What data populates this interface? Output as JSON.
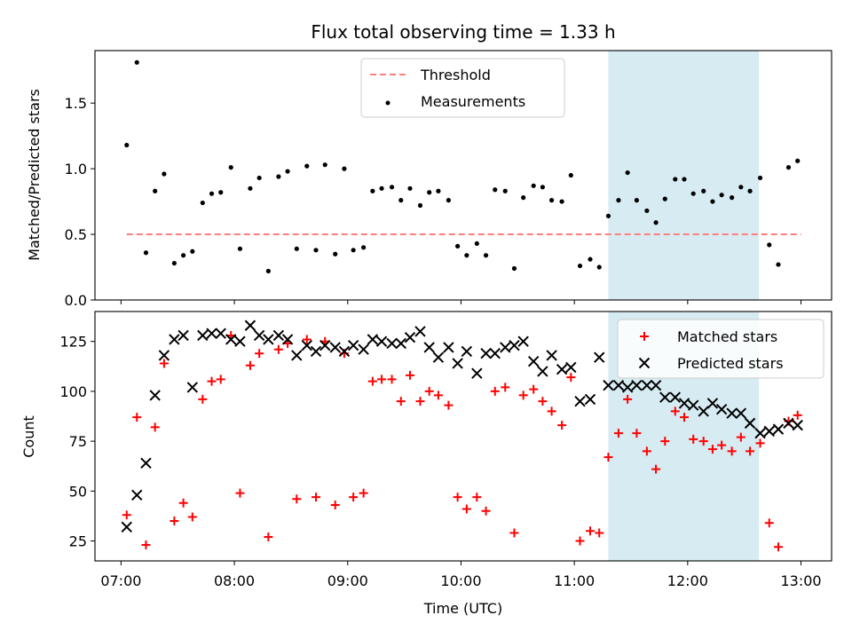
{
  "title": "Flux total observing time = 1.33 h",
  "colors": {
    "threshold": "#ff7f7f",
    "measurements": "#000000",
    "matched": "#ff0000",
    "predicted": "#000000",
    "span": "#add8e6"
  },
  "chart_data": [
    {
      "type": "scatter",
      "panel": "top",
      "ylabel": "Matched/Predicted stars",
      "xlabel": "",
      "xlim": [
        6.77,
        13.27
      ],
      "ylim": [
        0,
        1.9
      ],
      "yticks": [
        0.0,
        0.5,
        1.0,
        1.5
      ],
      "ytick_labels": [
        "0.0",
        "0.5",
        "1.0",
        "1.5"
      ],
      "xticks": [
        7,
        8,
        9,
        10,
        11,
        12,
        13
      ],
      "legend": {
        "placement": "top-center",
        "entries": [
          "Threshold",
          "Measurements"
        ]
      },
      "shaded_span": {
        "x0": 11.3,
        "x1": 12.63
      },
      "threshold": {
        "name": "Threshold",
        "value": 0.5,
        "x0": 7.05,
        "x1": 13.0,
        "style": "dashed"
      },
      "series": [
        {
          "name": "Measurements",
          "marker": "dot",
          "x": [
            7.05,
            7.14,
            7.22,
            7.3,
            7.38,
            7.47,
            7.55,
            7.63,
            7.72,
            7.8,
            7.88,
            7.97,
            8.05,
            8.14,
            8.22,
            8.3,
            8.39,
            8.47,
            8.55,
            8.64,
            8.72,
            8.8,
            8.89,
            8.97,
            9.05,
            9.14,
            9.22,
            9.3,
            9.39,
            9.47,
            9.55,
            9.64,
            9.72,
            9.8,
            9.89,
            9.97,
            10.05,
            10.14,
            10.22,
            10.3,
            10.39,
            10.47,
            10.55,
            10.64,
            10.72,
            10.8,
            10.89,
            10.97,
            11.05,
            11.14,
            11.22,
            11.3,
            11.39,
            11.47,
            11.55,
            11.64,
            11.72,
            11.8,
            11.89,
            11.97,
            12.05,
            12.14,
            12.22,
            12.3,
            12.39,
            12.47,
            12.55,
            12.64,
            12.72,
            12.8,
            12.89,
            12.97
          ],
          "y": [
            1.18,
            1.81,
            0.36,
            0.83,
            0.96,
            0.28,
            0.34,
            0.37,
            0.74,
            0.81,
            0.82,
            1.01,
            0.39,
            0.85,
            0.93,
            0.22,
            0.94,
            0.98,
            0.39,
            1.02,
            0.38,
            1.03,
            0.35,
            1.0,
            0.38,
            0.4,
            0.83,
            0.85,
            0.86,
            0.76,
            0.85,
            0.72,
            0.82,
            0.83,
            0.76,
            0.41,
            0.34,
            0.43,
            0.34,
            0.84,
            0.83,
            0.24,
            0.78,
            0.87,
            0.86,
            0.76,
            0.75,
            0.95,
            0.26,
            0.31,
            0.25,
            0.64,
            0.76,
            0.97,
            0.76,
            0.68,
            0.59,
            0.77,
            0.92,
            0.92,
            0.81,
            0.83,
            0.75,
            0.8,
            0.78,
            0.86,
            0.83,
            0.93,
            0.42,
            0.27,
            1.01,
            1.06
          ]
        }
      ]
    },
    {
      "type": "scatter",
      "panel": "bottom",
      "ylabel": "Count",
      "xlabel": "Time (UTC)",
      "xlim": [
        6.77,
        13.27
      ],
      "ylim": [
        15,
        140
      ],
      "yticks": [
        25,
        50,
        75,
        100,
        125
      ],
      "ytick_labels": [
        "25",
        "50",
        "75",
        "100",
        "125"
      ],
      "xticks": [
        7,
        8,
        9,
        10,
        11,
        12,
        13
      ],
      "xtick_labels": [
        "07:00",
        "08:00",
        "09:00",
        "10:00",
        "11:00",
        "12:00",
        "13:00"
      ],
      "legend": {
        "placement": "top-right",
        "entries": [
          "Matched stars",
          "Predicted stars"
        ]
      },
      "shaded_span": {
        "x0": 11.3,
        "x1": 12.63
      },
      "series": [
        {
          "name": "Matched stars",
          "marker": "plus",
          "x": [
            7.05,
            7.14,
            7.22,
            7.3,
            7.38,
            7.47,
            7.55,
            7.63,
            7.72,
            7.8,
            7.88,
            7.97,
            8.05,
            8.14,
            8.22,
            8.3,
            8.39,
            8.47,
            8.55,
            8.64,
            8.72,
            8.8,
            8.89,
            8.97,
            9.05,
            9.14,
            9.22,
            9.3,
            9.39,
            9.47,
            9.55,
            9.64,
            9.72,
            9.8,
            9.89,
            9.97,
            10.05,
            10.14,
            10.22,
            10.3,
            10.39,
            10.47,
            10.55,
            10.64,
            10.72,
            10.8,
            10.89,
            10.97,
            11.05,
            11.14,
            11.22,
            11.3,
            11.39,
            11.47,
            11.55,
            11.64,
            11.72,
            11.8,
            11.89,
            11.97,
            12.05,
            12.14,
            12.22,
            12.3,
            12.39,
            12.47,
            12.55,
            12.64,
            12.72,
            12.8,
            12.89,
            12.97
          ],
          "y": [
            38,
            87,
            23,
            82,
            114,
            35,
            44,
            37,
            96,
            105,
            106,
            128,
            49,
            113,
            119,
            27,
            121,
            124,
            46,
            126,
            47,
            125,
            43,
            119,
            47,
            49,
            105,
            106,
            106,
            95,
            108,
            95,
            100,
            98,
            93,
            47,
            41,
            47,
            40,
            100,
            102,
            29,
            98,
            101,
            95,
            90,
            83,
            107,
            25,
            30,
            29,
            67,
            79,
            96,
            79,
            70,
            61,
            75,
            90,
            87,
            76,
            75,
            71,
            73,
            70,
            77,
            70,
            74,
            34,
            22,
            85,
            88
          ]
        },
        {
          "name": "Predicted stars",
          "marker": "x",
          "x": [
            7.05,
            7.14,
            7.22,
            7.3,
            7.38,
            7.47,
            7.55,
            7.63,
            7.72,
            7.8,
            7.88,
            7.97,
            8.05,
            8.14,
            8.22,
            8.3,
            8.39,
            8.47,
            8.55,
            8.64,
            8.72,
            8.8,
            8.89,
            8.97,
            9.05,
            9.14,
            9.22,
            9.3,
            9.39,
            9.47,
            9.55,
            9.64,
            9.72,
            9.8,
            9.89,
            9.97,
            10.05,
            10.14,
            10.22,
            10.3,
            10.39,
            10.47,
            10.55,
            10.64,
            10.72,
            10.8,
            10.89,
            10.97,
            11.05,
            11.14,
            11.22,
            11.3,
            11.39,
            11.47,
            11.55,
            11.64,
            11.72,
            11.8,
            11.89,
            11.97,
            12.05,
            12.14,
            12.22,
            12.3,
            12.39,
            12.47,
            12.55,
            12.64,
            12.72,
            12.8,
            12.89,
            12.97
          ],
          "y": [
            32,
            48,
            64,
            98,
            118,
            126,
            128,
            102,
            128,
            129,
            129,
            126,
            125,
            133,
            128,
            126,
            128,
            126,
            118,
            123,
            120,
            123,
            122,
            120,
            123,
            121,
            126,
            125,
            124,
            124,
            127,
            130,
            122,
            117,
            122,
            114,
            120,
            109,
            119,
            119,
            122,
            123,
            125,
            115,
            110,
            118,
            111,
            112,
            95,
            96,
            117,
            103,
            103,
            102,
            103,
            103,
            103,
            97,
            97,
            94,
            93,
            90,
            94,
            91,
            89,
            89,
            84,
            79,
            80,
            81,
            84,
            83
          ]
        }
      ]
    }
  ]
}
